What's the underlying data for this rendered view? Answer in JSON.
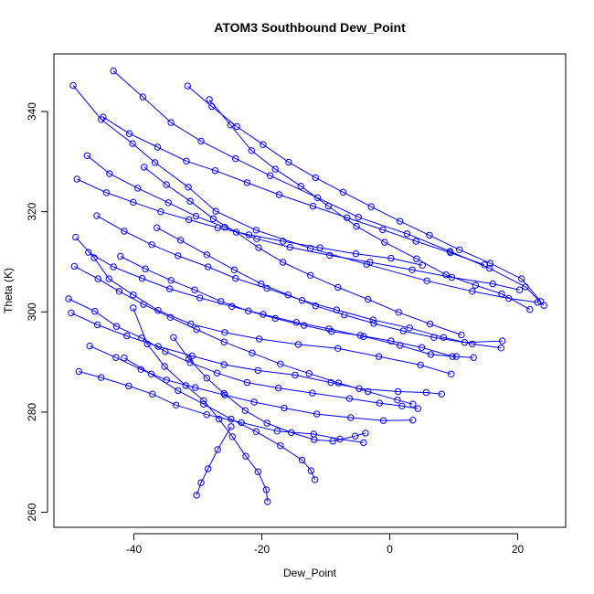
{
  "chart_data": {
    "type": "scatter",
    "title": "ATOM3 Southbound Dew_Point",
    "xlabel": "Dew_Point",
    "ylabel": "Theta (K)",
    "xlim": [
      -52.5,
      27.5
    ],
    "ylim": [
      257,
      351.5
    ],
    "x_ticks": [
      -40,
      -20,
      0,
      20
    ],
    "y_ticks": [
      260,
      280,
      300,
      320,
      340
    ],
    "grid": false,
    "legend": "none",
    "series_color": "#0000ff",
    "marker": "open-circle",
    "connected": true,
    "series": [
      {
        "values": [
          [
            -49.5,
            345.2
          ],
          [
            -45.1,
            338.4
          ],
          [
            -40.2,
            333.6
          ],
          [
            -36.7,
            329.8
          ],
          [
            -31.5,
            324.9
          ],
          [
            -27.2,
            320.1
          ],
          [
            -20.9,
            316.3
          ],
          [
            -12.4,
            312.7
          ],
          [
            -3.6,
            309.5
          ],
          [
            5.8,
            306.2
          ],
          [
            12.9,
            304.1
          ],
          [
            18.6,
            302.7
          ],
          [
            23.1,
            301.9
          ]
        ]
      },
      {
        "values": [
          [
            -43.2,
            348.1
          ],
          [
            -38.6,
            342.9
          ],
          [
            -34.2,
            337.8
          ],
          [
            -29.5,
            334.1
          ],
          [
            -24.1,
            330.6
          ],
          [
            -18.7,
            327.2
          ],
          [
            -11.3,
            322.8
          ],
          [
            -4.9,
            318.9
          ],
          [
            2.7,
            315.6
          ],
          [
            9.4,
            312.1
          ],
          [
            15.6,
            308.7
          ],
          [
            21.2,
            305.0
          ],
          [
            24.1,
            301.3
          ]
        ]
      },
      {
        "values": [
          [
            -49.1,
            314.9
          ],
          [
            -46.2,
            310.8
          ],
          [
            -43.9,
            306.6
          ],
          [
            -40.1,
            303.4
          ],
          [
            -36.2,
            300.3
          ],
          [
            -31.1,
            297.6
          ],
          [
            -25.8,
            295.9
          ],
          [
            -20.4,
            294.6
          ],
          [
            -14.3,
            293.5
          ],
          [
            -8.1,
            292.7
          ],
          [
            -1.7,
            291.1
          ],
          [
            4.8,
            289.4
          ],
          [
            9.6,
            287.6
          ]
        ]
      },
      {
        "values": [
          [
            -48.6,
            288.1
          ],
          [
            -45.1,
            286.9
          ],
          [
            -40.8,
            285.2
          ],
          [
            -37.1,
            283.6
          ],
          [
            -33.4,
            281.4
          ],
          [
            -28.6,
            279.5
          ],
          [
            -23.2,
            277.9
          ],
          [
            -17.6,
            276.2
          ],
          [
            -11.9,
            275.6
          ],
          [
            -7.8,
            274.6
          ],
          [
            -4.1,
            273.9
          ]
        ]
      },
      {
        "values": [
          [
            -40.1,
            300.8
          ],
          [
            -37.9,
            293.6
          ],
          [
            -35.2,
            289.1
          ],
          [
            -31.9,
            285.3
          ],
          [
            -29.1,
            282.3
          ],
          [
            -26.7,
            278.6
          ],
          [
            -24.6,
            275.1
          ],
          [
            -22.5,
            271.2
          ],
          [
            -20.6,
            268.1
          ],
          [
            -19.3,
            264.5
          ],
          [
            -19.1,
            262.1
          ]
        ]
      },
      {
        "values": [
          [
            -47.3,
            331.2
          ],
          [
            -43.8,
            327.6
          ],
          [
            -39.4,
            324.7
          ],
          [
            -34.6,
            321.8
          ],
          [
            -30.3,
            319.1
          ],
          [
            -25.8,
            316.9
          ],
          [
            -20.8,
            314.6
          ],
          [
            -15.6,
            312.9
          ],
          [
            -9.4,
            311.3
          ],
          [
            -3.1,
            309.9
          ],
          [
            3.5,
            308.4
          ],
          [
            9.7,
            306.9
          ],
          [
            16.1,
            305.6
          ],
          [
            20.3,
            304.4
          ]
        ]
      },
      {
        "values": [
          [
            -45.8,
            319.2
          ],
          [
            -41.5,
            316.1
          ],
          [
            -37.2,
            313.4
          ],
          [
            -33.1,
            311.2
          ],
          [
            -28.4,
            309.0
          ],
          [
            -24.1,
            306.7
          ],
          [
            -19.2,
            304.7
          ],
          [
            -13.7,
            302.3
          ],
          [
            -8.3,
            300.4
          ],
          [
            -2.6,
            298.4
          ],
          [
            3.1,
            296.8
          ],
          [
            8.4,
            294.9
          ],
          [
            12.9,
            293.6
          ],
          [
            17.4,
            292.8
          ]
        ]
      },
      {
        "values": [
          [
            -50.2,
            302.6
          ],
          [
            -46.1,
            300.1
          ],
          [
            -42.7,
            297.1
          ],
          [
            -38.8,
            294.8
          ],
          [
            -35.1,
            292.1
          ],
          [
            -31.2,
            289.9
          ],
          [
            -27.0,
            287.8
          ],
          [
            -22.3,
            285.9
          ],
          [
            -17.4,
            284.8
          ],
          [
            -12.1,
            283.8
          ],
          [
            -6.3,
            282.7
          ],
          [
            -1.6,
            281.8
          ],
          [
            1.9,
            281.2
          ],
          [
            4.4,
            280.7
          ]
        ]
      },
      {
        "values": [
          [
            -28.2,
            342.4
          ],
          [
            -24.9,
            337.3
          ],
          [
            -21.6,
            332.2
          ],
          [
            -17.9,
            328.5
          ],
          [
            -13.9,
            325.1
          ],
          [
            -9.6,
            321.1
          ],
          [
            -5.2,
            317.1
          ],
          [
            -0.8,
            313.9
          ],
          [
            4.2,
            310.6
          ],
          [
            8.8,
            307.4
          ],
          [
            13.4,
            305.3
          ],
          [
            17.5,
            303.6
          ],
          [
            21.9,
            300.5
          ]
        ]
      },
      {
        "values": [
          [
            -49.8,
            299.8
          ],
          [
            -45.7,
            297.4
          ],
          [
            -41.1,
            295.2
          ],
          [
            -36.2,
            293.1
          ],
          [
            -30.9,
            291.2
          ],
          [
            -25.9,
            289.5
          ],
          [
            -20.6,
            288.3
          ],
          [
            -14.8,
            287.4
          ],
          [
            -9.2,
            285.9
          ],
          [
            -4.8,
            284.7
          ],
          [
            1.3,
            284.1
          ],
          [
            5.7,
            283.9
          ],
          [
            8.1,
            283.6
          ]
        ]
      },
      {
        "values": [
          [
            -44.8,
            338.9
          ],
          [
            -40.7,
            335.6
          ],
          [
            -36.3,
            332.9
          ],
          [
            -31.8,
            330.1
          ],
          [
            -27.3,
            328.2
          ],
          [
            -22.3,
            325.8
          ],
          [
            -17.3,
            323.4
          ],
          [
            -12.0,
            321.1
          ],
          [
            -6.7,
            318.8
          ],
          [
            -1.1,
            316.4
          ],
          [
            4.1,
            314.1
          ],
          [
            9.5,
            311.8
          ],
          [
            14.8,
            309.4
          ]
        ]
      },
      {
        "values": [
          [
            -48.9,
            326.5
          ],
          [
            -44.3,
            323.8
          ],
          [
            -40.1,
            321.9
          ],
          [
            -35.8,
            320.0
          ],
          [
            -31.4,
            318.4
          ],
          [
            -26.9,
            316.8
          ],
          [
            -22.0,
            315.4
          ],
          [
            -16.7,
            314.1
          ],
          [
            -10.9,
            312.8
          ],
          [
            -5.3,
            311.6
          ],
          [
            0.2,
            310.7
          ],
          [
            5.1,
            309.3
          ]
        ]
      },
      {
        "values": [
          [
            -42.1,
            311.1
          ],
          [
            -38.2,
            308.6
          ],
          [
            -34.2,
            306.3
          ],
          [
            -30.5,
            304.4
          ],
          [
            -26.4,
            302.1
          ],
          [
            -22.1,
            300.2
          ],
          [
            -17.9,
            298.7
          ],
          [
            -13.4,
            297.3
          ],
          [
            -9.1,
            296.1
          ],
          [
            -4.6,
            295.3
          ],
          [
            0.2,
            294.2
          ],
          [
            5.0,
            292.9
          ],
          [
            9.8,
            291.1
          ],
          [
            13.1,
            290.9
          ]
        ]
      },
      {
        "values": [
          [
            -33.8,
            294.9
          ],
          [
            -31.4,
            290.6
          ],
          [
            -28.6,
            286.8
          ],
          [
            -25.9,
            283.7
          ],
          [
            -22.6,
            280.3
          ],
          [
            -19.2,
            277.8
          ],
          [
            -15.4,
            275.9
          ],
          [
            -11.8,
            274.5
          ],
          [
            -8.9,
            274.2
          ],
          [
            -5.4,
            275.2
          ],
          [
            -3.8,
            275.8
          ]
        ]
      },
      {
        "values": [
          [
            -47.1,
            311.9
          ],
          [
            -43.2,
            309.0
          ],
          [
            -38.7,
            306.7
          ],
          [
            -34.4,
            304.6
          ],
          [
            -29.7,
            302.8
          ],
          [
            -24.7,
            301.1
          ],
          [
            -19.8,
            299.5
          ],
          [
            -14.6,
            297.9
          ],
          [
            -9.5,
            296.6
          ],
          [
            -4.1,
            295.1
          ],
          [
            1.6,
            293.3
          ],
          [
            6.4,
            291.5
          ],
          [
            10.4,
            291.1
          ]
        ]
      },
      {
        "values": [
          [
            -38.4,
            328.9
          ],
          [
            -34.9,
            325.4
          ],
          [
            -31.2,
            322.1
          ],
          [
            -27.6,
            318.6
          ],
          [
            -24.0,
            315.9
          ],
          [
            -20.5,
            312.8
          ],
          [
            -16.7,
            309.9
          ],
          [
            -12.4,
            307.3
          ],
          [
            -8.1,
            304.9
          ],
          [
            -3.4,
            302.5
          ],
          [
            1.4,
            299.9
          ],
          [
            6.3,
            297.6
          ],
          [
            11.2,
            295.4
          ]
        ]
      },
      {
        "values": [
          [
            -41.5,
            290.8
          ],
          [
            -37.3,
            287.6
          ],
          [
            -33.1,
            284.3
          ],
          [
            -29.1,
            281.6
          ],
          [
            -24.8,
            278.6
          ],
          [
            -20.9,
            276.1
          ],
          [
            -17.1,
            273.3
          ],
          [
            -13.7,
            270.4
          ],
          [
            -12.3,
            268.3
          ],
          [
            -11.7,
            266.5
          ]
        ]
      },
      {
        "values": [
          [
            -49.3,
            309.1
          ],
          [
            -45.6,
            306.6
          ],
          [
            -42.3,
            304.1
          ],
          [
            -38.5,
            301.5
          ],
          [
            -34.3,
            298.9
          ],
          [
            -30.2,
            296.5
          ],
          [
            -25.9,
            294.0
          ],
          [
            -21.5,
            291.8
          ],
          [
            -17.1,
            289.6
          ],
          [
            -12.6,
            287.7
          ],
          [
            -8.0,
            285.8
          ],
          [
            -3.4,
            284.1
          ],
          [
            1.2,
            282.4
          ],
          [
            3.6,
            281.6
          ]
        ]
      },
      {
        "values": [
          [
            -24.8,
            277.1
          ],
          [
            -26.9,
            272.5
          ],
          [
            -28.4,
            268.7
          ],
          [
            -29.5,
            265.9
          ],
          [
            -30.2,
            263.4
          ]
        ]
      },
      {
        "values": [
          [
            -36.4,
            316.8
          ],
          [
            -32.7,
            314.3
          ],
          [
            -28.6,
            311.4
          ],
          [
            -24.3,
            308.4
          ],
          [
            -20.1,
            305.6
          ],
          [
            -15.9,
            303.4
          ],
          [
            -11.6,
            301.2
          ],
          [
            -7.1,
            299.4
          ],
          [
            -2.5,
            297.7
          ],
          [
            2.1,
            296.2
          ],
          [
            6.9,
            294.9
          ],
          [
            11.7,
            293.9
          ],
          [
            17.6,
            294.2
          ]
        ]
      },
      {
        "values": [
          [
            -46.9,
            293.2
          ],
          [
            -42.8,
            290.9
          ],
          [
            -38.9,
            288.5
          ],
          [
            -34.9,
            286.4
          ],
          [
            -30.4,
            284.9
          ],
          [
            -25.8,
            283.4
          ],
          [
            -21.2,
            282.0
          ],
          [
            -16.5,
            280.8
          ],
          [
            -11.4,
            279.6
          ],
          [
            -6.1,
            278.9
          ],
          [
            -1.0,
            278.3
          ],
          [
            3.6,
            278.4
          ]
        ]
      },
      {
        "values": [
          [
            -31.6,
            345.1
          ],
          [
            -27.8,
            341.0
          ],
          [
            -23.9,
            337.0
          ],
          [
            -19.8,
            333.4
          ],
          [
            -15.8,
            329.9
          ],
          [
            -11.6,
            326.8
          ],
          [
            -7.3,
            323.9
          ],
          [
            -2.9,
            321.0
          ],
          [
            1.6,
            318.1
          ],
          [
            6.2,
            315.3
          ],
          [
            10.9,
            312.4
          ],
          [
            15.7,
            309.7
          ],
          [
            20.6,
            306.6
          ],
          [
            23.6,
            302.1
          ]
        ]
      }
    ]
  }
}
